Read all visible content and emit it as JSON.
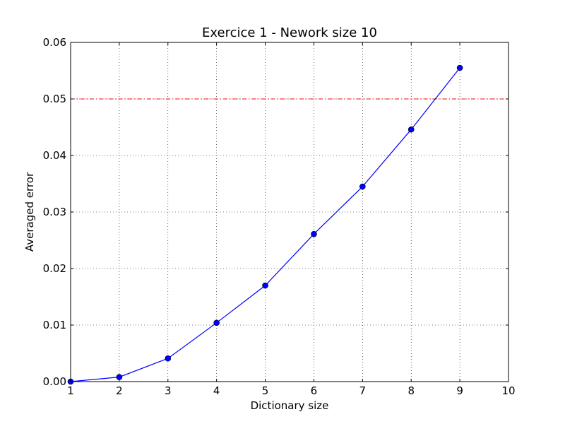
{
  "chart_data": {
    "type": "line",
    "title": "Exercice 1 - Nework size 10",
    "xlabel": "Dictionary size",
    "ylabel": "Averaged error",
    "xlim": [
      1,
      10
    ],
    "ylim": [
      0,
      0.06
    ],
    "xticks": [
      1,
      2,
      3,
      4,
      5,
      6,
      7,
      8,
      9,
      10
    ],
    "xtick_labels": [
      "1",
      "2",
      "3",
      "4",
      "5",
      "6",
      "7",
      "8",
      "9",
      "10"
    ],
    "yticks": [
      0,
      0.01,
      0.02,
      0.03,
      0.04,
      0.05,
      0.06
    ],
    "ytick_labels": [
      "0.00",
      "0.01",
      "0.02",
      "0.03",
      "0.04",
      "0.05",
      "0.06"
    ],
    "grid": true,
    "series": [
      {
        "x": [
          1,
          2,
          3,
          4,
          5,
          6,
          7,
          8,
          9
        ],
        "values": [
          0.0,
          0.0008,
          0.0041,
          0.0104,
          0.017,
          0.0261,
          0.0345,
          0.0446,
          0.0555
        ],
        "color": "#0000ff",
        "marker": "circle",
        "line_style": "solid"
      }
    ],
    "reference_lines": [
      {
        "axis": "y",
        "value": 0.05,
        "color": "#ff0000",
        "line_style": "dashdot"
      }
    ]
  }
}
